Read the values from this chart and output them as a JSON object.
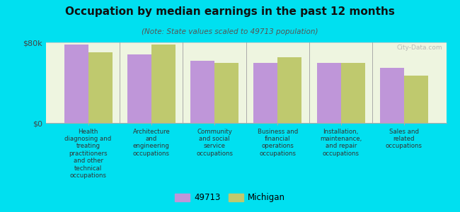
{
  "title": "Occupation by median earnings in the past 12 months",
  "subtitle": "(Note: State values scaled to 49713 population)",
  "categories": [
    "Health\ndiagnosing and\ntreating\npractitioners\nand other\ntechnical\noccupations",
    "Architecture\nand\nengineering\noccupations",
    "Community\nand social\nservice\noccupations",
    "Business and\nfinancial\noperations\noccupations",
    "Installation,\nmaintenance,\nand repair\noccupations",
    "Sales and\nrelated\noccupations"
  ],
  "values_49713": [
    78000,
    68000,
    62000,
    60000,
    60000,
    55000
  ],
  "values_michigan": [
    70000,
    78000,
    60000,
    65000,
    60000,
    47000
  ],
  "color_49713": "#bf96d9",
  "color_michigan": "#bfc96e",
  "background_outer": "#00e0f0",
  "background_plot": "#eef5e0",
  "ylim": [
    0,
    80000
  ],
  "ytick_labels": [
    "$0",
    "$80k"
  ],
  "legend_label_49713": "49713",
  "legend_label_michigan": "Michigan",
  "watermark": "City-Data.com"
}
